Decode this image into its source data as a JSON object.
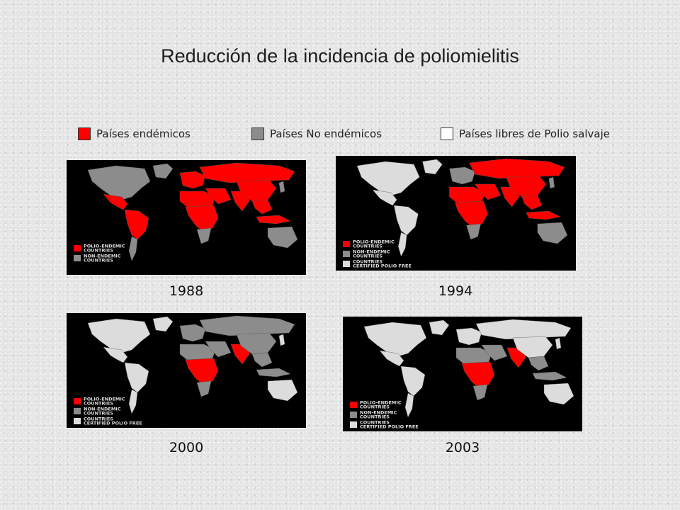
{
  "title": "Reducción de la incidencia de poliomielitis",
  "legend": {
    "endemic": "Países endémicos",
    "non_endemic": "Países No endémicos",
    "polio_free": "Países libres de Polio salvaje"
  },
  "colors": {
    "endemic": "#ff0000",
    "non_endemic": "#8c8c8c",
    "polio_free": "#dcdcdc",
    "ocean": "#000000"
  },
  "map_legend": {
    "endemic": [
      "POLIO-ENDEMIC",
      "COUNTRIES"
    ],
    "non_endemic": [
      "NON-ENDEMIC",
      "COUNTRIES"
    ],
    "polio_free": [
      "COUNTRIES",
      "CERTIFIED POLIO FREE"
    ]
  },
  "maps": [
    {
      "year": "1988",
      "regions": {
        "north_america": "non_endemic",
        "greenland": "non_endemic",
        "central_america": "endemic",
        "south_america": "endemic",
        "south_cone": "non_endemic",
        "europe": "endemic",
        "north_africa": "endemic",
        "sub_saharan_africa": "endemic",
        "southern_africa": "non_endemic",
        "middle_east": "endemic",
        "russia": "endemic",
        "south_asia": "endemic",
        "china": "endemic",
        "southeast_asia": "endemic",
        "indonesia": "endemic",
        "japan": "non_endemic",
        "australia": "non_endemic"
      }
    },
    {
      "year": "1994",
      "regions": {
        "north_america": "polio_free",
        "greenland": "polio_free",
        "central_america": "polio_free",
        "south_america": "polio_free",
        "south_cone": "polio_free",
        "europe": "non_endemic",
        "north_africa": "endemic",
        "sub_saharan_africa": "endemic",
        "southern_africa": "non_endemic",
        "middle_east": "endemic",
        "russia": "endemic",
        "south_asia": "endemic",
        "china": "endemic",
        "southeast_asia": "endemic",
        "indonesia": "endemic",
        "japan": "non_endemic",
        "australia": "non_endemic"
      }
    },
    {
      "year": "2000",
      "regions": {
        "north_america": "polio_free",
        "greenland": "polio_free",
        "central_america": "polio_free",
        "south_america": "polio_free",
        "south_cone": "polio_free",
        "europe": "non_endemic",
        "north_africa": "non_endemic",
        "sub_saharan_africa": "endemic",
        "southern_africa": "non_endemic",
        "middle_east": "non_endemic",
        "russia": "non_endemic",
        "south_asia": "endemic",
        "china": "non_endemic",
        "southeast_asia": "non_endemic",
        "indonesia": "non_endemic",
        "japan": "polio_free",
        "australia": "polio_free"
      }
    },
    {
      "year": "2003",
      "regions": {
        "north_america": "polio_free",
        "greenland": "polio_free",
        "central_america": "polio_free",
        "south_america": "polio_free",
        "south_cone": "polio_free",
        "europe": "polio_free",
        "north_africa": "non_endemic",
        "sub_saharan_africa": "endemic",
        "southern_africa": "non_endemic",
        "middle_east": "non_endemic",
        "russia": "polio_free",
        "south_asia": "endemic",
        "china": "polio_free",
        "southeast_asia": "non_endemic",
        "indonesia": "non_endemic",
        "japan": "polio_free",
        "australia": "polio_free"
      }
    }
  ]
}
